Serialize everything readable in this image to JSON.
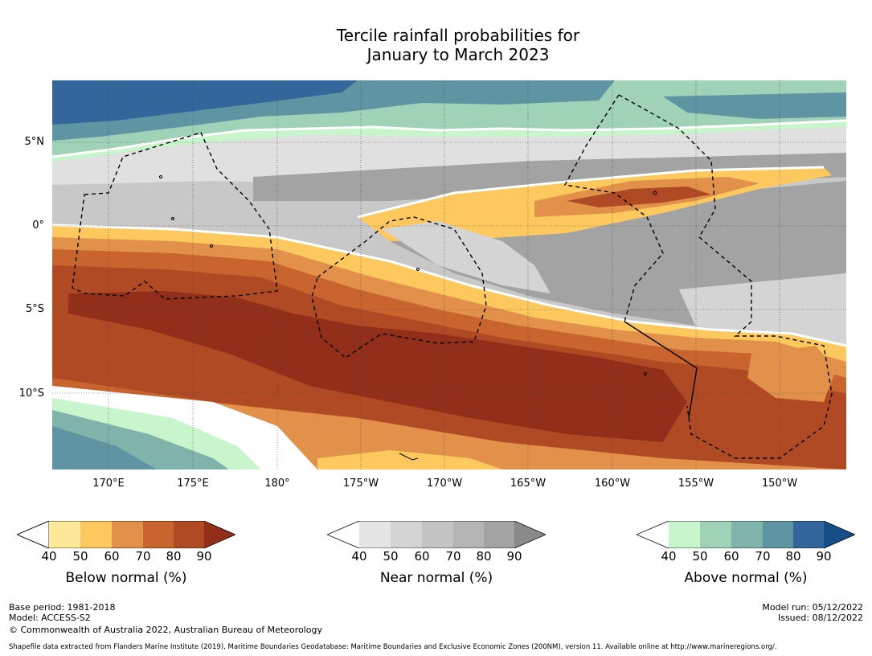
{
  "title": {
    "line1": "Tercile rainfall probabilities for",
    "line2": "January to March 2023"
  },
  "axes": {
    "lat_ticks": [
      "5°N",
      "0°",
      "5°S",
      "10°S"
    ],
    "lon_ticks": [
      "170°E",
      "175°E",
      "180°",
      "175°W",
      "170°W",
      "165°W",
      "160°W",
      "155°W",
      "150°W"
    ]
  },
  "colorbars": [
    {
      "label": "Below normal (%)",
      "ticks": [
        "40",
        "50",
        "60",
        "70",
        "80",
        "90"
      ],
      "colors": [
        "#ffffff",
        "#fee89a",
        "#fdc85e",
        "#e2914a",
        "#c9642f",
        "#b04a24",
        "#922f1b"
      ]
    },
    {
      "label": "Near normal (%)",
      "ticks": [
        "40",
        "50",
        "60",
        "70",
        "80",
        "90"
      ],
      "colors": [
        "#ffffff",
        "#e5e5e5",
        "#d4d4d4",
        "#c4c4c4",
        "#b4b4b4",
        "#a3a3a3",
        "#8a8a8a"
      ]
    },
    {
      "label": "Above normal (%)",
      "ticks": [
        "40",
        "50",
        "60",
        "70",
        "80",
        "90"
      ],
      "colors": [
        "#ffffff",
        "#c8f5cc",
        "#a0d2b8",
        "#80b4aa",
        "#5f95a2",
        "#33679c",
        "#164f88"
      ]
    }
  ],
  "footer": {
    "base_period": "Base period: 1981-2018",
    "model": "Model: ACCESS-S2",
    "copyright": "© Commonwealth of Australia 2022, Australian Bureau of Meteorology",
    "model_run": "Model run: 05/12/2022",
    "issued": "Issued: 08/12/2022",
    "shapefile": "Shapefile data extracted from Flanders Marine Institute (2019), Maritime Boundaries Geodatabase: Maritime Boundaries and Exclusive Economic Zones (200NM), version 11. Available online at http://www.marineregions.org/."
  }
}
